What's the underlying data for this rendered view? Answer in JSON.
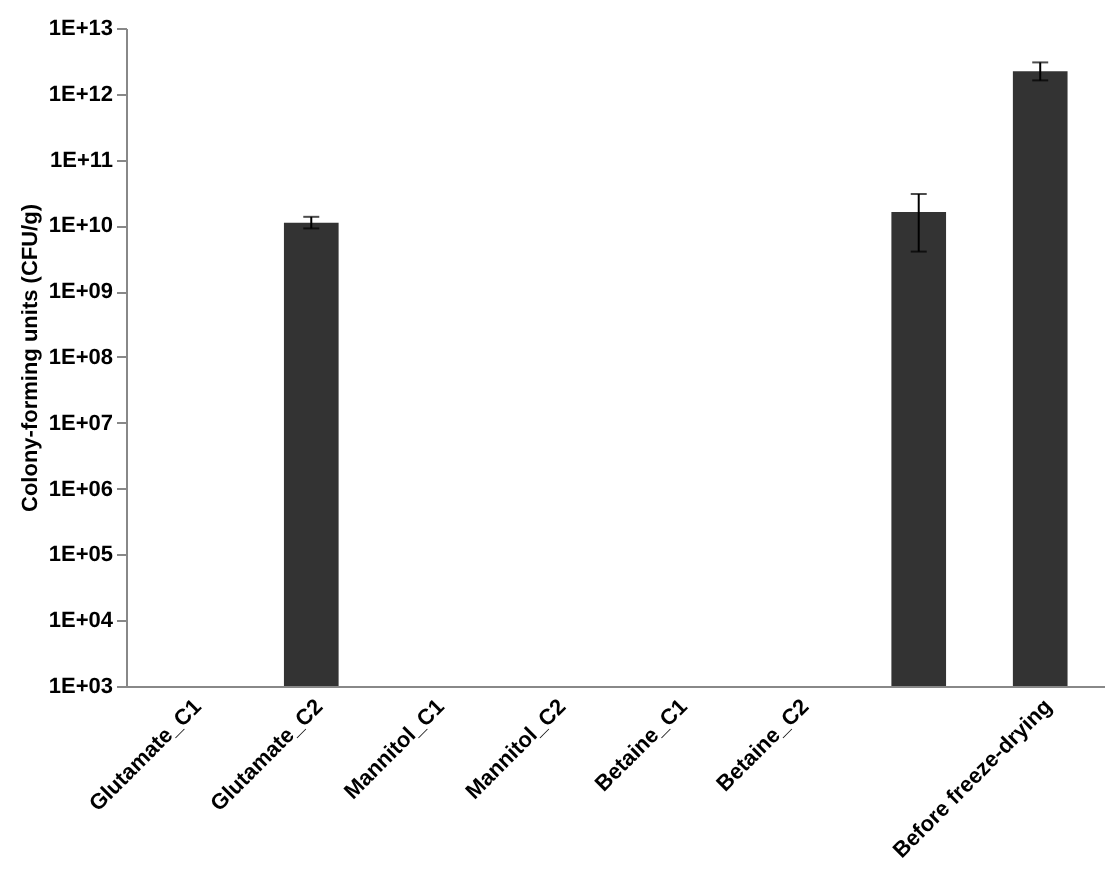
{
  "chart_data": {
    "type": "bar",
    "ylabel": "Colony-forming units (CFU/g)",
    "categories": [
      "Glutamate_C1",
      "Glutamate_C2",
      "Mannitol_C1",
      "Mannitol_C2",
      "Betaine_C1",
      "Betaine_C2",
      null,
      "Before freeze-drying"
    ],
    "values": [
      null,
      11000000000.0,
      null,
      null,
      null,
      null,
      16000000000.0,
      2200000000000.0
    ],
    "errors": [
      null,
      [
        9000000000.0,
        13500000000.0
      ],
      null,
      null,
      null,
      null,
      [
        4000000000.0,
        30000000000.0
      ],
      [
        1600000000000.0,
        3000000000000.0
      ]
    ],
    "color": "#333333",
    "log": true,
    "ylim": [
      1000.0,
      10000000000000.0
    ],
    "yticks": [
      {
        "value": 1000.0,
        "label": "1E+03"
      },
      {
        "value": 10000.0,
        "label": "1E+04"
      },
      {
        "value": 100000.0,
        "label": "1E+05"
      },
      {
        "value": 1000000.0,
        "label": "1E+06"
      },
      {
        "value": 10000000.0,
        "label": "1E+07"
      },
      {
        "value": 100000000.0,
        "label": "1E+08"
      },
      {
        "value": 1000000000.0,
        "label": "1E+09"
      },
      {
        "value": 10000000000.0,
        "label": "1E+10"
      },
      {
        "value": 100000000000.0,
        "label": "1E+11"
      },
      {
        "value": 1000000000000.0,
        "label": "1E+12"
      },
      {
        "value": 10000000000000.0,
        "label": "1E+13"
      }
    ],
    "grid": false
  }
}
